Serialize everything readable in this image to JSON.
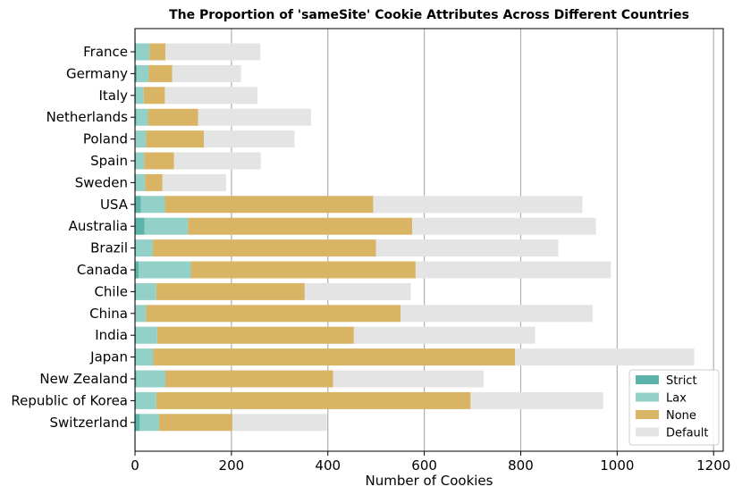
{
  "chart_data": {
    "type": "bar",
    "orientation": "horizontal",
    "stacked": true,
    "title": "The Proportion of 'sameSite' Cookie Attributes Across Different Countries",
    "xlabel": "Number of Cookies",
    "ylabel": "",
    "xlim": [
      0,
      1220
    ],
    "xticks": [
      0,
      200,
      400,
      600,
      800,
      1000,
      1200
    ],
    "grid": "vertical",
    "legend_position": "lower-right",
    "categories": [
      "France",
      "Germany",
      "Italy",
      "Netherlands",
      "Poland",
      "Spain",
      "Sweden",
      "USA",
      "Australia",
      "Brazil",
      "Canada",
      "Chile",
      "China",
      "India",
      "Japan",
      "New Zealand",
      "Republic of Korea",
      "Switzerland"
    ],
    "series": [
      {
        "name": "Strict",
        "color": "#5bb3aa",
        "values": [
          2,
          4,
          2,
          3,
          1,
          2,
          2,
          12,
          20,
          2,
          8,
          2,
          1,
          2,
          2,
          3,
          2,
          10
        ]
      },
      {
        "name": "Lax",
        "color": "#92d0c8",
        "values": [
          28,
          24,
          16,
          24,
          22,
          17,
          19,
          50,
          90,
          35,
          108,
          42,
          22,
          44,
          36,
          60,
          42,
          40
        ]
      },
      {
        "name": "None",
        "color": "#d8b464",
        "values": [
          33,
          49,
          44,
          104,
          120,
          62,
          36,
          432,
          465,
          463,
          466,
          308,
          528,
          408,
          750,
          348,
          652,
          152
        ]
      },
      {
        "name": "Default",
        "color": "#e4e4e4",
        "values": [
          197,
          143,
          192,
          234,
          188,
          180,
          132,
          434,
          381,
          378,
          405,
          220,
          398,
          376,
          372,
          312,
          275,
          196
        ]
      }
    ]
  }
}
